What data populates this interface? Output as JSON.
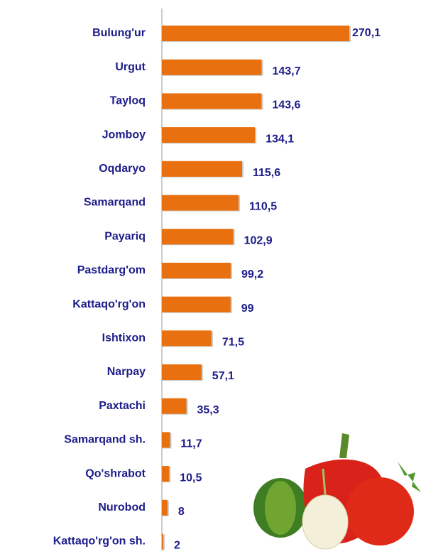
{
  "chart_data": {
    "type": "bar",
    "orientation": "horizontal",
    "categories": [
      "Bulung'ur",
      "Urgut",
      "Tayloq",
      "Jomboy",
      "Oqdaryo",
      "Samarqand",
      "Payariq",
      "Pastdarg'om",
      "Kattaqo'rg'on",
      "Ishtixon",
      "Narpay",
      "Paxtachi",
      "Samarqand sh.",
      "Qo'shrabot",
      "Nurobod",
      "Kattaqo'rg'on sh."
    ],
    "values": [
      270.1,
      143.7,
      143.6,
      134.1,
      115.6,
      110.5,
      102.9,
      99.2,
      99,
      71.5,
      57.1,
      35.3,
      11.7,
      10.5,
      8,
      2
    ],
    "value_labels": [
      "270,1",
      "143,7",
      "143,6",
      "134,1",
      "115,6",
      "110,5",
      "102,9",
      "99,2",
      "99",
      "71,5",
      "57,1",
      "35,3",
      "11,7",
      "10,5",
      "8",
      "2"
    ],
    "color": "#e8700e"
  }
}
